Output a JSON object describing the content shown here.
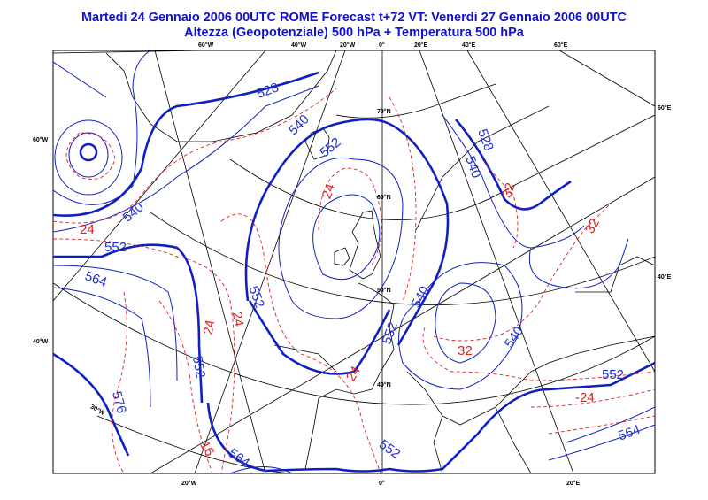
{
  "header": {
    "title_line1": "Martedi 24 Gennaio 2006 00UTC ROME  Forecast t+72 VT: Venerdi 27 Gennaio 2006 00UTC",
    "title_line2": "Altezza (Geopotenziale) 500 hPa + Temperatura 500 hPa"
  },
  "map": {
    "top_ticks": [
      "60°W",
      "40°W",
      "20°W",
      "0°",
      "20°E",
      "40°E",
      "60°E"
    ],
    "right_ticks": [
      "60°E",
      "40°E"
    ],
    "left_ticks": [
      "60°W",
      "40°W"
    ],
    "bottom_ticks": [
      "20°W",
      "0°",
      "20°E"
    ],
    "lat_labels": [
      "70°N",
      "60°N",
      "50°N",
      "40°N"
    ],
    "inner_lon_label": "30°W",
    "geopotential_color": "#1020c0",
    "temperature_color": "#e02020",
    "geopotential_labels": [
      "528",
      "540",
      "552",
      "528",
      "540",
      "540",
      "552",
      "564",
      "552",
      "552",
      "540",
      "540",
      "552",
      "576",
      "552",
      "564",
      "552",
      "564"
    ],
    "temperature_labels": [
      "32",
      "24",
      "24",
      "24",
      "24",
      "32",
      "24",
      "32",
      "-24",
      "16"
    ]
  }
}
